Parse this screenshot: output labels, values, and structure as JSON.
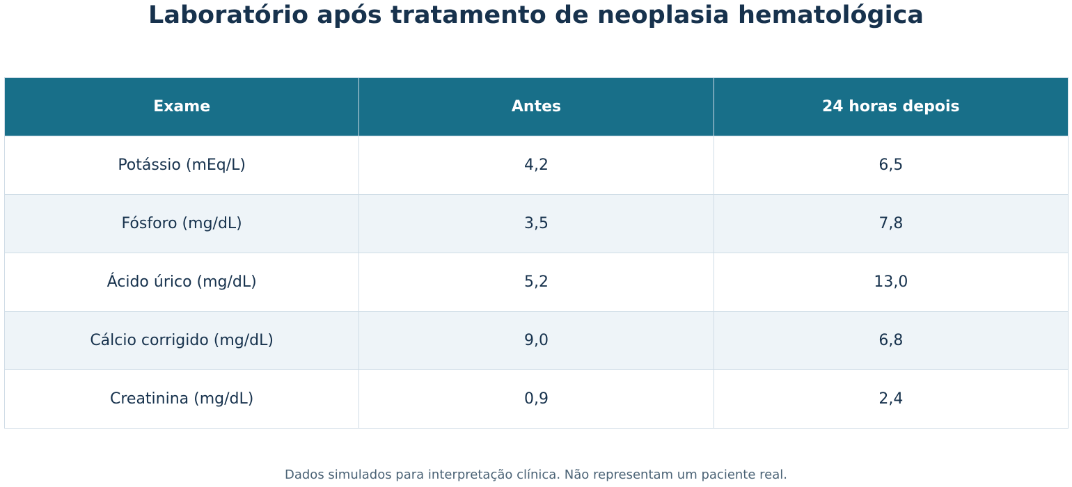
{
  "title": "Laboratório após tratamento de neoplasia hematológica",
  "footnote": "Dados simulados para interpretação clínica. Não representam um paciente real.",
  "colors": {
    "header_bg": "#186f89",
    "title_text": "#17324d",
    "row_alt_bg": "#eef4f8"
  },
  "chart_data": {
    "type": "table",
    "title": "Laboratório após tratamento de neoplasia hematológica",
    "columns": [
      "Exame",
      "Antes",
      "24 horas depois"
    ],
    "rows": [
      [
        "Potássio (mEq/L)",
        "4,2",
        "6,5"
      ],
      [
        "Fósforo (mg/dL)",
        "3,5",
        "7,8"
      ],
      [
        "Ácido úrico (mg/dL)",
        "5,2",
        "13,0"
      ],
      [
        "Cálcio corrigido (mg/dL)",
        "9,0",
        "6,8"
      ],
      [
        "Creatinina (mg/dL)",
        "0,9",
        "2,4"
      ]
    ]
  }
}
